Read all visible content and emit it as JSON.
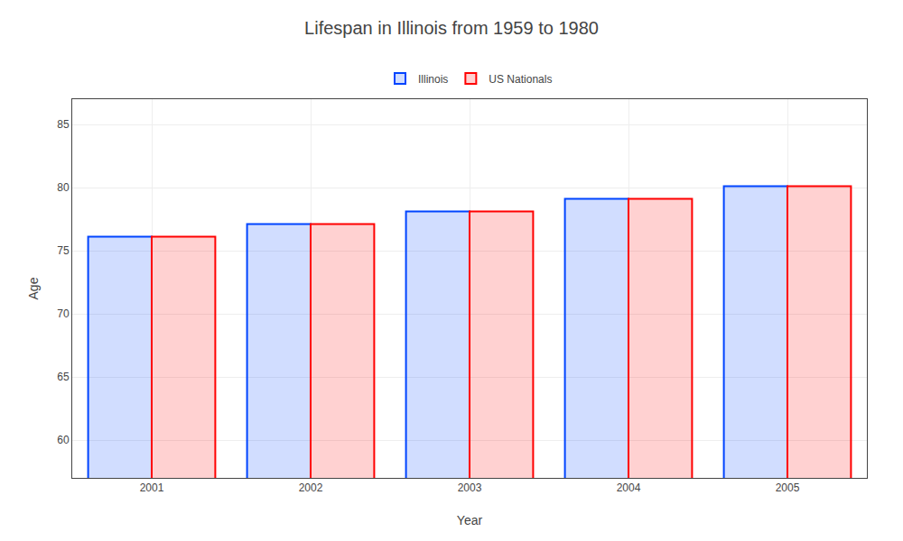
{
  "chart_data": {
    "type": "bar",
    "title": "Lifespan in Illinois from 1959 to 1980",
    "xlabel": "Year",
    "ylabel": "Age",
    "categories": [
      "2001",
      "2002",
      "2003",
      "2004",
      "2005"
    ],
    "series": [
      {
        "name": "Illinois",
        "color": "#0044ff",
        "values": [
          76.1,
          77.1,
          78.1,
          79.1,
          80.1
        ]
      },
      {
        "name": "US Nationals",
        "color": "#ff0000",
        "values": [
          76.1,
          77.1,
          78.1,
          79.1,
          80.1
        ]
      }
    ],
    "ylim": [
      57,
      87
    ],
    "yticks": [
      60,
      65,
      70,
      75,
      80,
      85
    ],
    "grid": true,
    "legend": "top"
  }
}
